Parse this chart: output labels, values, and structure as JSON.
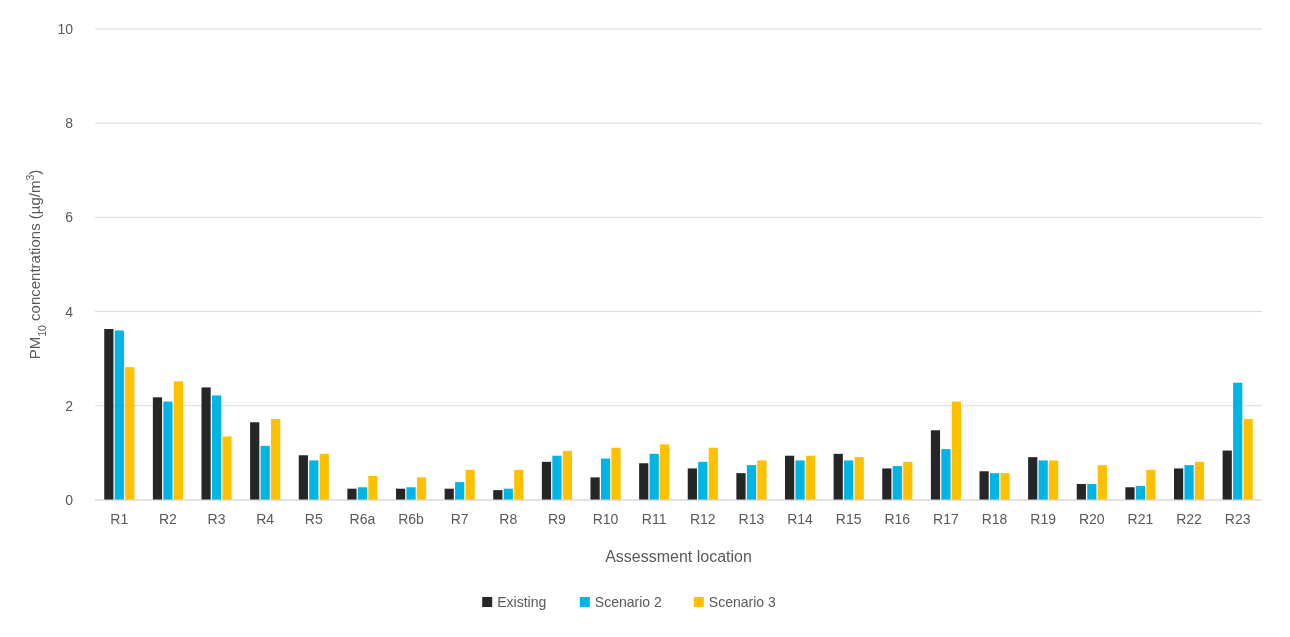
{
  "chart_data": {
    "type": "bar",
    "xlabel": "Assessment location",
    "ylabel": "PM$_{10}$ concentrations (µg/m$^{3}$)",
    "categories": [
      "R1",
      "R2",
      "R3",
      "R4",
      "R5",
      "R6a",
      "R6b",
      "R7",
      "R8",
      "R9",
      "R10",
      "R11",
      "R12",
      "R13",
      "R14",
      "R15",
      "R16",
      "R17",
      "R18",
      "R19",
      "R20",
      "R21",
      "R22",
      "R23"
    ],
    "series": [
      {
        "name": "Existing",
        "color": "#262626",
        "values": [
          3.63,
          2.18,
          2.39,
          1.65,
          0.95,
          0.24,
          0.24,
          0.24,
          0.21,
          0.81,
          0.48,
          0.78,
          0.67,
          0.57,
          0.94,
          0.98,
          0.67,
          1.48,
          0.61,
          0.91,
          0.34,
          0.27,
          0.67,
          1.05
        ]
      },
      {
        "name": "Scenario 2",
        "color": "#00b4e6",
        "values": [
          3.6,
          2.09,
          2.22,
          1.15,
          0.84,
          0.27,
          0.27,
          0.38,
          0.24,
          0.94,
          0.88,
          0.98,
          0.81,
          0.74,
          0.84,
          0.84,
          0.72,
          1.08,
          0.57,
          0.84,
          0.34,
          0.3,
          0.74,
          2.49
        ]
      },
      {
        "name": "Scenario 3",
        "color": "#ffc000",
        "values": [
          2.82,
          2.52,
          1.35,
          1.72,
          0.98,
          0.51,
          0.48,
          0.64,
          0.64,
          1.04,
          1.11,
          1.18,
          1.11,
          0.84,
          0.94,
          0.91,
          0.81,
          2.09,
          0.57,
          0.84,
          0.74,
          0.64,
          0.81,
          1.72
        ]
      }
    ],
    "ylim": [
      0,
      10
    ],
    "yticks": [
      0,
      2,
      4,
      6,
      8,
      10
    ],
    "grid": "y",
    "legend": "bottom"
  }
}
